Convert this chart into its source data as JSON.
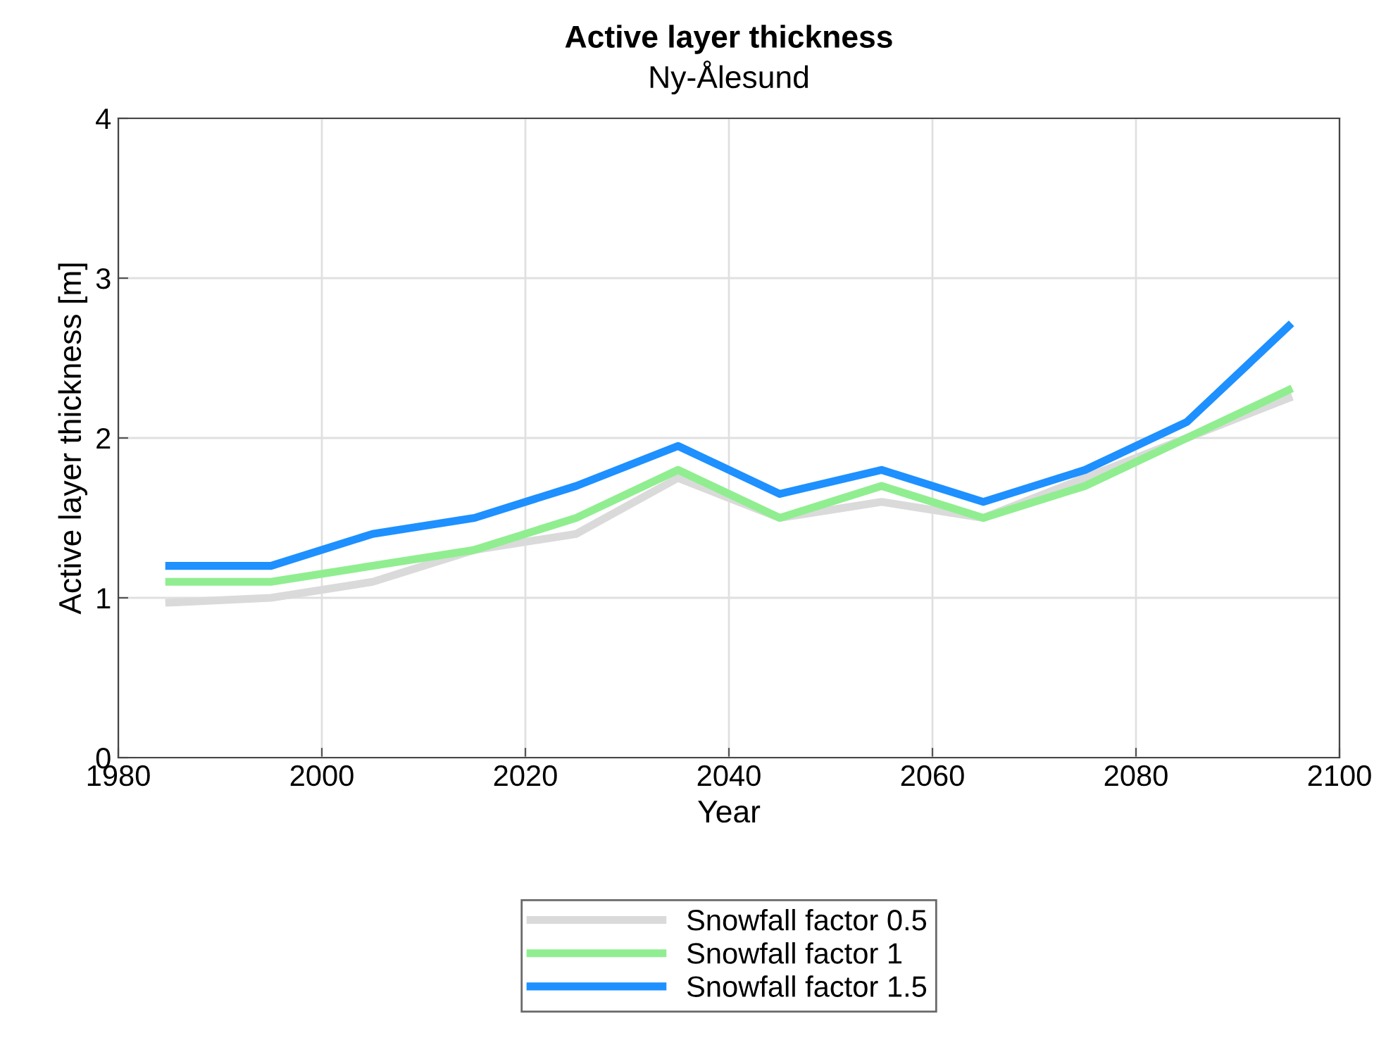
{
  "chart_data": {
    "type": "line",
    "title": "Active layer thickness",
    "subtitle": "Ny-Ålesund",
    "xlabel": "Year",
    "ylabel": "Active layer thickness [m]",
    "x": [
      1985,
      1995,
      2005,
      2015,
      2025,
      2035,
      2045,
      2055,
      2065,
      2075,
      2085,
      2095
    ],
    "series": [
      {
        "name": "Snowfall factor 0.5",
        "color": "#dadada",
        "values": [
          0.97,
          1.0,
          1.1,
          1.3,
          1.4,
          1.75,
          1.5,
          1.6,
          1.5,
          1.75,
          2.0,
          2.25
        ]
      },
      {
        "name": "Snowfall factor 1",
        "color": "#90ee90",
        "values": [
          1.1,
          1.1,
          1.2,
          1.3,
          1.5,
          1.8,
          1.5,
          1.7,
          1.5,
          1.7,
          2.0,
          2.3
        ]
      },
      {
        "name": "Snowfall factor 1.5",
        "color": "#1e90ff",
        "values": [
          1.2,
          1.2,
          1.4,
          1.5,
          1.7,
          1.95,
          1.65,
          1.8,
          1.6,
          1.8,
          2.1,
          2.7
        ]
      }
    ],
    "xlim": [
      1980,
      2100
    ],
    "xticks": [
      1980,
      2000,
      2020,
      2040,
      2060,
      2080,
      2100
    ],
    "ylim": [
      0,
      4
    ],
    "yticks": [
      0,
      1,
      2,
      3,
      4
    ],
    "grid": true,
    "legend": "bottom",
    "line_style": "solid",
    "marker": "none"
  }
}
